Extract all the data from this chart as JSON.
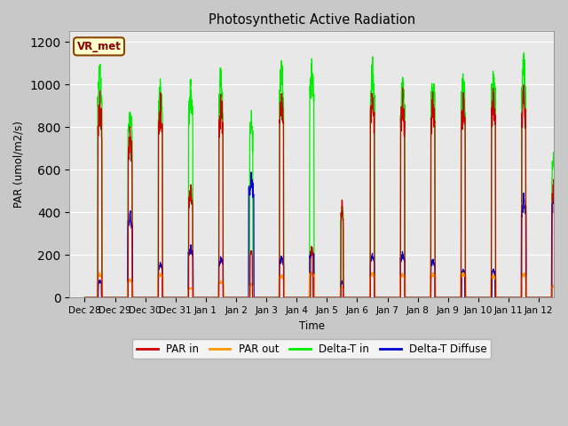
{
  "title": "Photosynthetic Active Radiation",
  "ylabel": "PAR (umol/m2/s)",
  "xlabel": "Time",
  "ylim": [
    0,
    1250
  ],
  "yticks": [
    0,
    200,
    400,
    600,
    800,
    1000,
    1200
  ],
  "xtick_labels": [
    "Dec 28",
    "Dec 29",
    "Dec 30",
    "Dec 31",
    "Jan 1",
    "Jan 2",
    "Jan 3",
    "Jan 4",
    "Jan 5",
    "Jan 6",
    "Jan 7",
    "Jan 8",
    "Jan 9",
    "Jan 10",
    "Jan 11",
    "Jan 12"
  ],
  "label_box": "VR_met",
  "fig_bg": "#c8c8c8",
  "plot_bg": "#e8e8e8",
  "colors": {
    "PAR_in": "#cc0000",
    "PAR_out": "#ff9900",
    "Delta_T_in": "#00ee00",
    "Delta_T_Diffuse": "#0000cc"
  },
  "n_days": 16,
  "pts_per_day": 144,
  "day_peaks": {
    "PAR_in": [
      990,
      820,
      970,
      540,
      990,
      240,
      1010,
      250,
      470,
      1040,
      990,
      990,
      990,
      1040,
      1040,
      570
    ],
    "PAR_out": [
      120,
      90,
      120,
      50,
      80,
      70,
      110,
      130,
      50,
      120,
      120,
      120,
      120,
      110,
      120,
      60
    ],
    "Delta_T_in": [
      1160,
      950,
      1070,
      1070,
      1130,
      920,
      1160,
      1160,
      450,
      1160,
      1090,
      1100,
      1100,
      1160,
      1180,
      740
    ],
    "Delta_T_Diff": [
      85,
      415,
      170,
      250,
      200,
      600,
      200,
      240,
      80,
      210,
      220,
      190,
      140,
      140,
      500,
      500
    ]
  },
  "day_widths": {
    "PAR_in": [
      0.13,
      0.13,
      0.13,
      0.13,
      0.13,
      0.08,
      0.13,
      0.08,
      0.08,
      0.13,
      0.13,
      0.13,
      0.13,
      0.13,
      0.13,
      0.13
    ],
    "PAR_out": [
      0.18,
      0.18,
      0.18,
      0.18,
      0.18,
      0.12,
      0.18,
      0.18,
      0.12,
      0.18,
      0.18,
      0.18,
      0.18,
      0.18,
      0.18,
      0.18
    ],
    "Delta_T_in": [
      0.14,
      0.14,
      0.14,
      0.14,
      0.14,
      0.1,
      0.14,
      0.14,
      0.1,
      0.14,
      0.14,
      0.14,
      0.14,
      0.14,
      0.14,
      0.14
    ],
    "Delta_T_Diff": [
      0.1,
      0.16,
      0.13,
      0.16,
      0.14,
      0.18,
      0.14,
      0.14,
      0.08,
      0.13,
      0.14,
      0.13,
      0.1,
      0.1,
      0.16,
      0.16
    ]
  }
}
